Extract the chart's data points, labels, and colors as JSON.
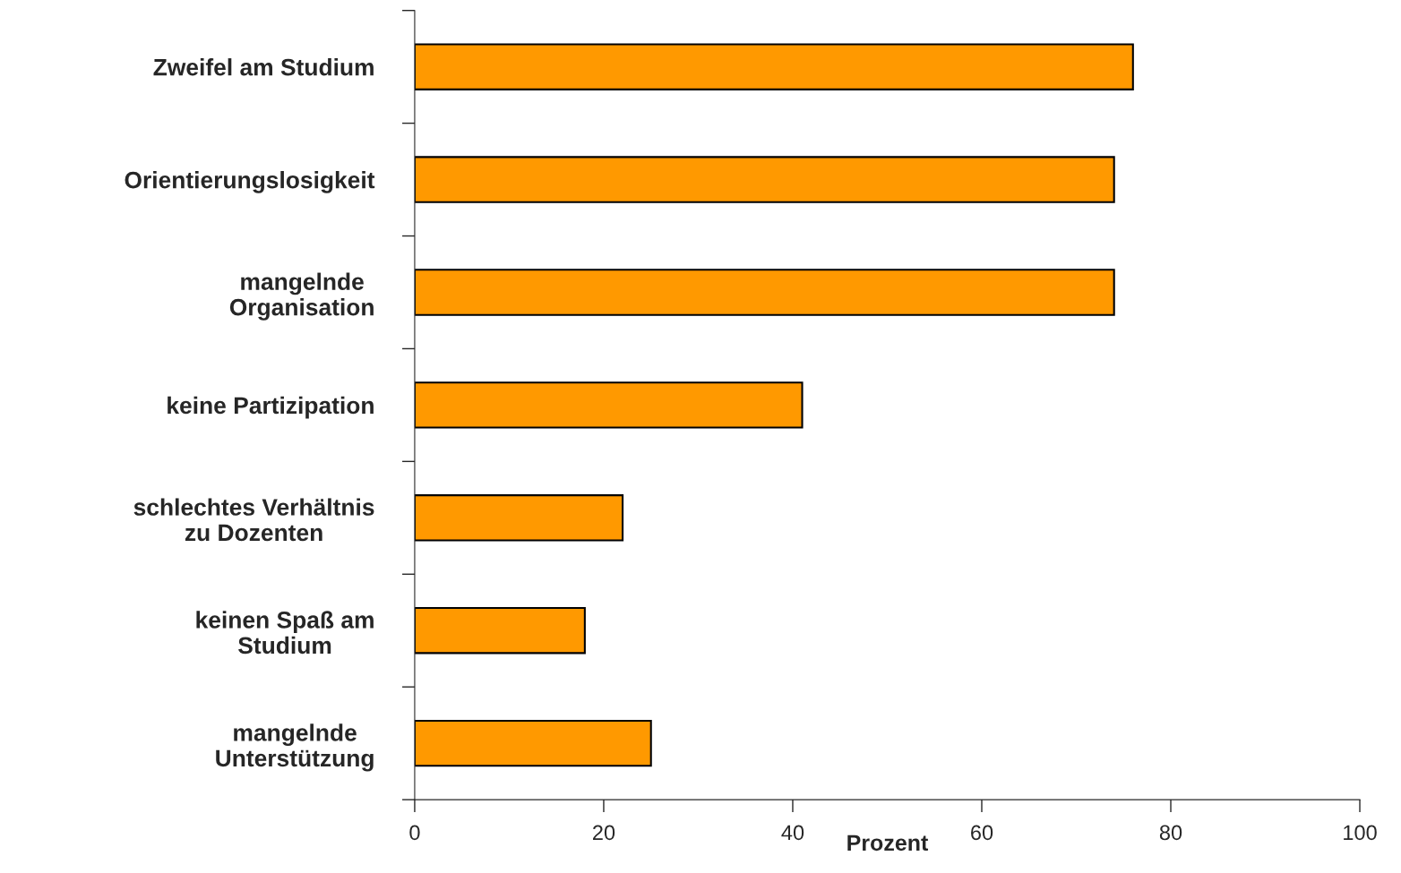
{
  "chart_data": {
    "type": "bar",
    "orientation": "horizontal",
    "xlabel": "Prozent",
    "categories": [
      "Zweifel am Studium",
      "Orientierungslosigkeit",
      "mangelnde\nOrganisation",
      "keine Partizipation",
      "schlechtes Verhältnis\nzu Dozenten",
      "keinen Spaß am\nStudium",
      "mangelnde\nUnterstützung"
    ],
    "values": [
      76,
      74,
      74,
      41,
      22,
      18,
      25
    ],
    "color": "#ff9900",
    "xlim": [
      0,
      100
    ],
    "xticks": [
      0,
      20,
      40,
      60,
      80,
      100
    ],
    "grid": false
  }
}
